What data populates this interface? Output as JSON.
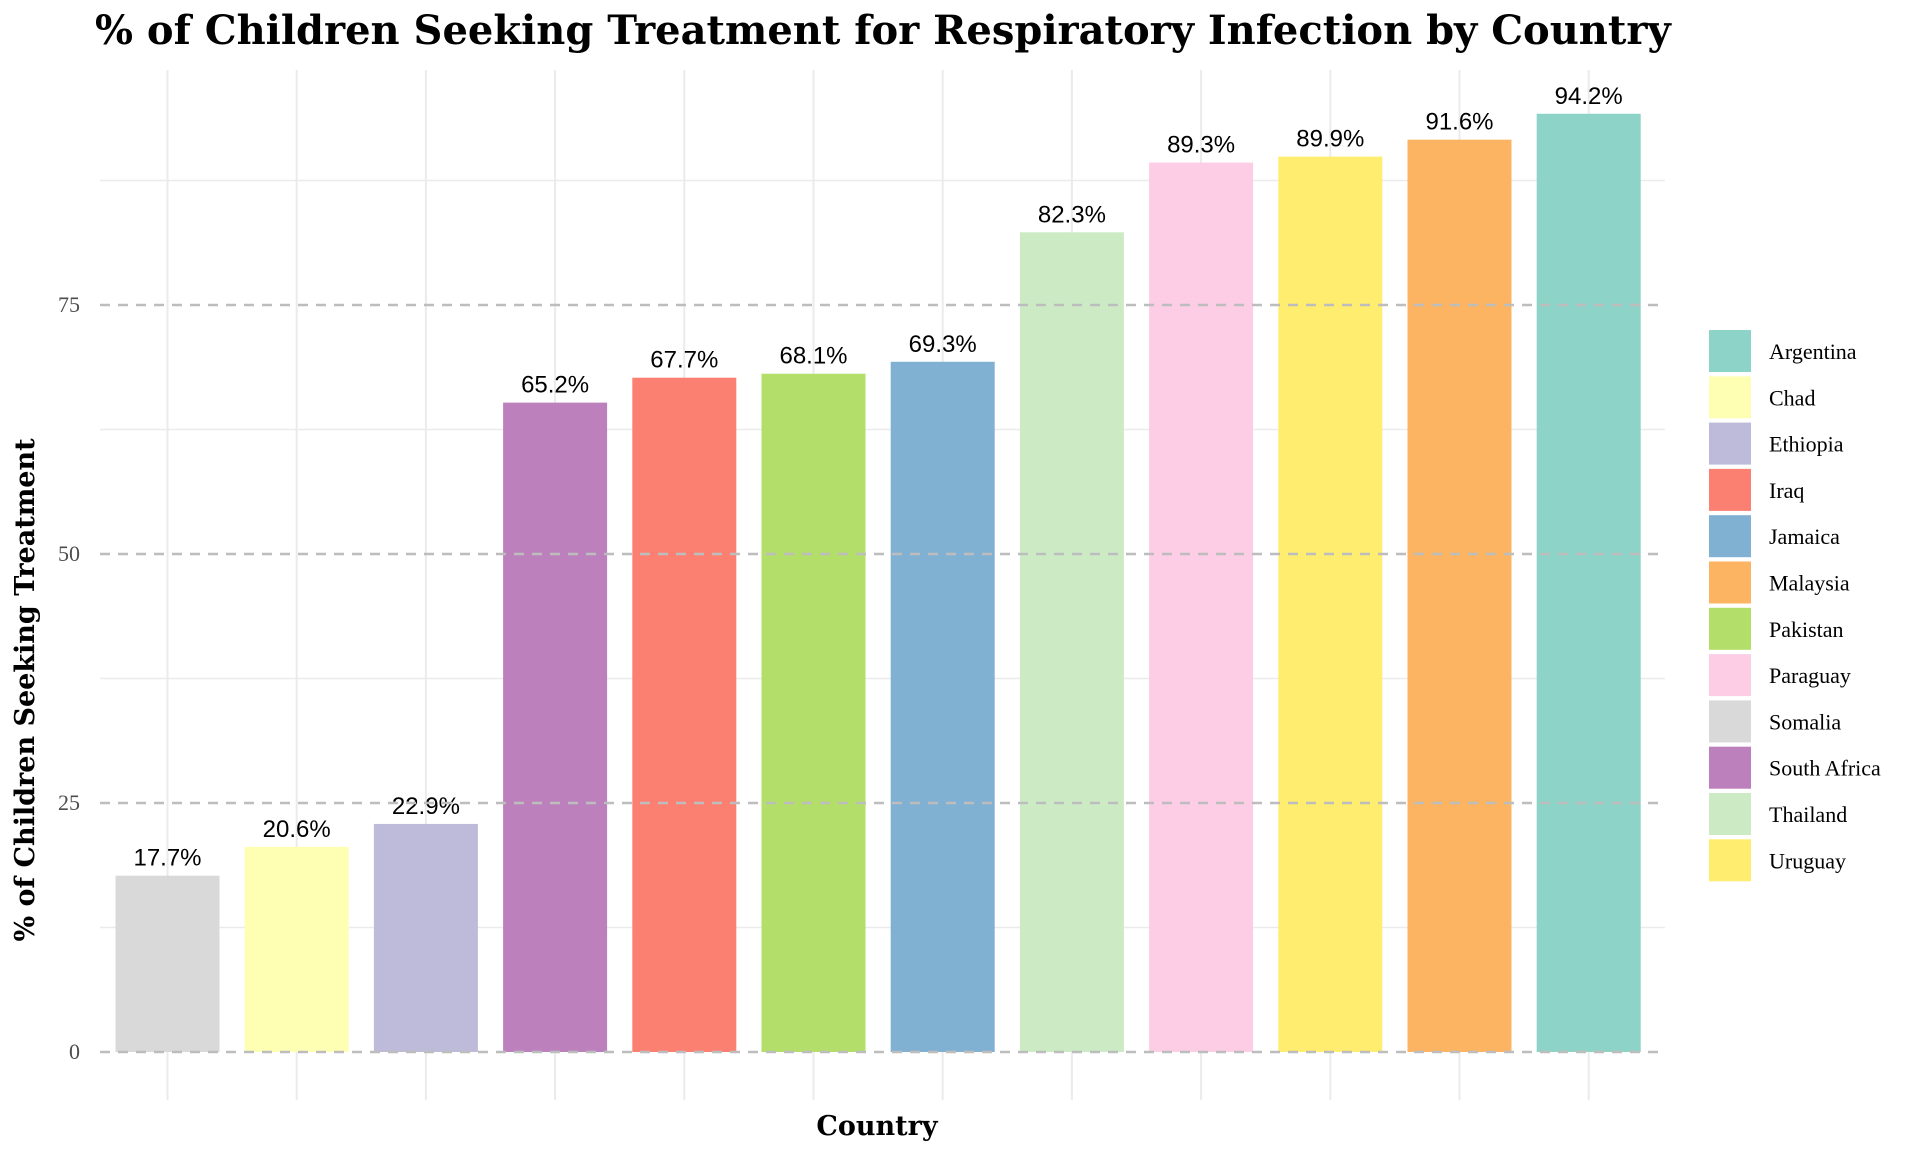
{
  "chart_data": {
    "type": "bar",
    "title": "% of Children Seeking Treatment for Respiratory Infection by Country",
    "xlabel": "Country",
    "ylabel": "% of Children Seeking Treatment",
    "ylim": [
      0,
      99
    ],
    "yticks": [
      0,
      25,
      50,
      75
    ],
    "grid": true,
    "legend_position": "right",
    "categories": [
      "Somalia",
      "Chad",
      "Ethiopia",
      "South Africa",
      "Iraq",
      "Pakistan",
      "Jamaica",
      "Thailand",
      "Paraguay",
      "Uruguay",
      "Malaysia",
      "Argentina"
    ],
    "values": [
      17.7,
      20.6,
      22.9,
      65.2,
      67.7,
      68.1,
      69.3,
      82.3,
      89.3,
      89.9,
      91.6,
      94.2
    ],
    "value_labels": [
      "17.7%",
      "20.6%",
      "22.9%",
      "65.2%",
      "67.7%",
      "68.1%",
      "69.3%",
      "82.3%",
      "89.3%",
      "89.9%",
      "91.6%",
      "94.2%"
    ],
    "colors": {
      "Argentina": "#8DD3C7",
      "Chad": "#FFFFB3",
      "Ethiopia": "#BEBADA",
      "Iraq": "#FB8072",
      "Jamaica": "#80B1D3",
      "Malaysia": "#FDB462",
      "Pakistan": "#B3DE69",
      "Paraguay": "#FCCDE5",
      "Somalia": "#D9D9D9",
      "South Africa": "#BC80BD",
      "Thailand": "#CCEBC5",
      "Uruguay": "#FFED6F"
    },
    "legend_entries": [
      "Argentina",
      "Chad",
      "Ethiopia",
      "Iraq",
      "Jamaica",
      "Malaysia",
      "Pakistan",
      "Paraguay",
      "Somalia",
      "South Africa",
      "Thailand",
      "Uruguay"
    ]
  }
}
